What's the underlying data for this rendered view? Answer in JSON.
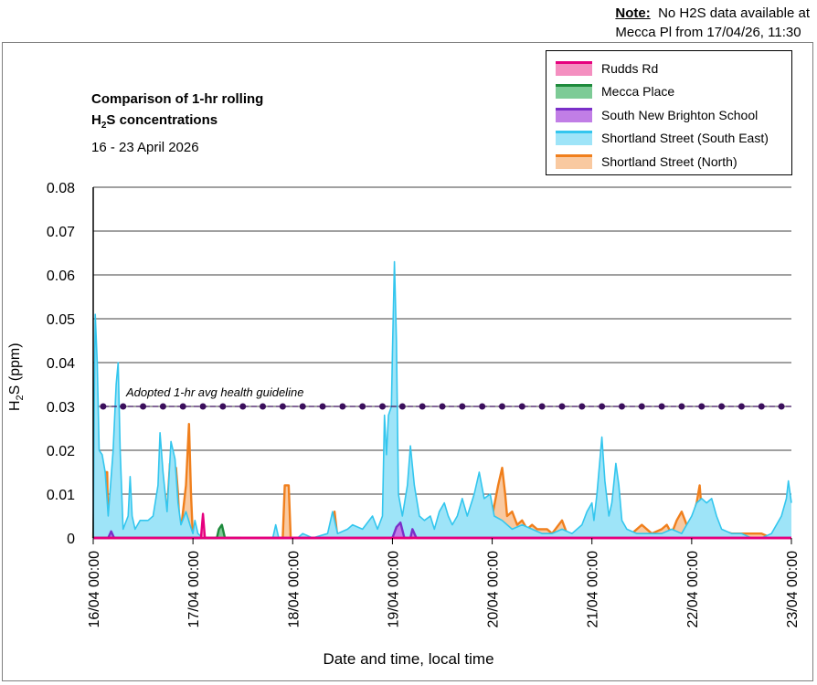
{
  "note": {
    "label": "Note:",
    "line1": "No H2S data available at",
    "line2": "Mecca Pl from 17/04/26, 11:30"
  },
  "chart_data": {
    "type": "area",
    "title": "Comparison of 1-hr rolling H2S concentrations",
    "title_line1": "Comparison of 1-hr rolling",
    "title_line2_main": "H",
    "title_line2_sub": "2",
    "title_line2_rest": "S concentrations",
    "subtitle": "16 - 23 April 2026",
    "ylabel_main": "H",
    "ylabel_sub": "2",
    "ylabel_rest": "S (ppm)",
    "xlabel": "Date and time, local time",
    "ylim": [
      0,
      0.08
    ],
    "yticks": [
      "0",
      "0.01",
      "0.02",
      "0.03",
      "0.04",
      "0.05",
      "0.06",
      "0.07",
      "0.08"
    ],
    "ytick_values": [
      0,
      0.01,
      0.02,
      0.03,
      0.04,
      0.05,
      0.06,
      0.07,
      0.08
    ],
    "xlim_days": [
      0,
      7
    ],
    "xticks": [
      "16/04 00:00",
      "17/04 00:00",
      "18/04 00:00",
      "19/04 00:00",
      "20/04 00:00",
      "21/04 00:00",
      "22/04 00:00",
      "23/04 00:00"
    ],
    "grid": true,
    "legend_position": "top-right",
    "guideline": {
      "label": "Adopted 1-hr avg health guideline",
      "value": 0.03,
      "color": "#3b0f5c"
    },
    "series": [
      {
        "name": "Rudds Rd",
        "line_color": "#e6007e",
        "fill_color": "#f48fc0",
        "points": [
          [
            0,
            0
          ],
          [
            1.08,
            0
          ],
          [
            1.1,
            0.0055
          ],
          [
            1.12,
            0
          ],
          [
            7,
            0
          ]
        ]
      },
      {
        "name": "Mecca Place",
        "line_color": "#1e8a3c",
        "fill_color": "#7dcb96",
        "points": [
          [
            0,
            0
          ],
          [
            1.24,
            0
          ],
          [
            1.26,
            0.002
          ],
          [
            1.29,
            0.003
          ],
          [
            1.32,
            0
          ],
          [
            1.48,
            0
          ]
        ]
      },
      {
        "name": "South New Brighton School",
        "line_color": "#7a2fc8",
        "fill_color": "#c17ee6",
        "points": [
          [
            0,
            0
          ],
          [
            0.15,
            0
          ],
          [
            0.18,
            0.0015
          ],
          [
            0.21,
            0
          ],
          [
            3,
            0
          ],
          [
            3.04,
            0.0025
          ],
          [
            3.08,
            0.0035
          ],
          [
            3.12,
            0
          ],
          [
            3.18,
            0
          ],
          [
            3.2,
            0.002
          ],
          [
            3.24,
            0
          ],
          [
            7,
            0
          ]
        ]
      },
      {
        "name": "Shortland Street (South East)",
        "line_color": "#33c6ee",
        "fill_color": "#9ee4f8",
        "points": [
          [
            0,
            0
          ],
          [
            0.01,
            0.03
          ],
          [
            0.02,
            0.051
          ],
          [
            0.04,
            0.04
          ],
          [
            0.06,
            0.02
          ],
          [
            0.09,
            0.019
          ],
          [
            0.12,
            0.015
          ],
          [
            0.15,
            0.005
          ],
          [
            0.2,
            0.02
          ],
          [
            0.23,
            0.035
          ],
          [
            0.25,
            0.04
          ],
          [
            0.27,
            0.02
          ],
          [
            0.3,
            0.002
          ],
          [
            0.35,
            0.005
          ],
          [
            0.37,
            0.014
          ],
          [
            0.39,
            0.005
          ],
          [
            0.42,
            0.002
          ],
          [
            0.47,
            0.004
          ],
          [
            0.55,
            0.004
          ],
          [
            0.6,
            0.005
          ],
          [
            0.65,
            0.012
          ],
          [
            0.67,
            0.024
          ],
          [
            0.7,
            0.015
          ],
          [
            0.74,
            0.006
          ],
          [
            0.78,
            0.022
          ],
          [
            0.82,
            0.018
          ],
          [
            0.85,
            0.008
          ],
          [
            0.88,
            0.003
          ],
          [
            0.93,
            0.006
          ],
          [
            0.97,
            0.003
          ],
          [
            1.0,
            0.001
          ],
          [
            1.02,
            0.004
          ],
          [
            1.05,
            0.001
          ],
          [
            1.1,
            0
          ],
          [
            1.8,
            0
          ],
          [
            1.83,
            0.003
          ],
          [
            1.86,
            0
          ],
          [
            2.05,
            0
          ],
          [
            2.1,
            0.001
          ],
          [
            2.2,
            0
          ],
          [
            2.35,
            0.001
          ],
          [
            2.4,
            0.006
          ],
          [
            2.45,
            0.001
          ],
          [
            2.55,
            0.002
          ],
          [
            2.6,
            0.003
          ],
          [
            2.7,
            0.002
          ],
          [
            2.8,
            0.005
          ],
          [
            2.85,
            0.002
          ],
          [
            2.9,
            0.005
          ],
          [
            2.92,
            0.028
          ],
          [
            2.94,
            0.019
          ],
          [
            2.96,
            0.028
          ],
          [
            2.99,
            0.03
          ],
          [
            3.0,
            0.042
          ],
          [
            3.02,
            0.063
          ],
          [
            3.04,
            0.045
          ],
          [
            3.06,
            0.01
          ],
          [
            3.1,
            0.005
          ],
          [
            3.15,
            0.012
          ],
          [
            3.18,
            0.021
          ],
          [
            3.22,
            0.012
          ],
          [
            3.27,
            0.005
          ],
          [
            3.32,
            0.004
          ],
          [
            3.38,
            0.005
          ],
          [
            3.42,
            0.002
          ],
          [
            3.47,
            0.006
          ],
          [
            3.52,
            0.008
          ],
          [
            3.56,
            0.005
          ],
          [
            3.6,
            0.003
          ],
          [
            3.65,
            0.005
          ],
          [
            3.7,
            0.009
          ],
          [
            3.75,
            0.005
          ],
          [
            3.82,
            0.01
          ],
          [
            3.87,
            0.015
          ],
          [
            3.92,
            0.009
          ],
          [
            3.98,
            0.01
          ],
          [
            4.02,
            0.005
          ],
          [
            4.1,
            0.004
          ],
          [
            4.2,
            0.002
          ],
          [
            4.3,
            0.003
          ],
          [
            4.4,
            0.002
          ],
          [
            4.5,
            0.001
          ],
          [
            4.6,
            0.001
          ],
          [
            4.7,
            0.002
          ],
          [
            4.8,
            0.001
          ],
          [
            4.9,
            0.003
          ],
          [
            4.95,
            0.006
          ],
          [
            5.0,
            0.008
          ],
          [
            5.02,
            0.004
          ],
          [
            5.05,
            0.01
          ],
          [
            5.1,
            0.023
          ],
          [
            5.13,
            0.013
          ],
          [
            5.17,
            0.005
          ],
          [
            5.2,
            0.008
          ],
          [
            5.24,
            0.017
          ],
          [
            5.27,
            0.012
          ],
          [
            5.3,
            0.004
          ],
          [
            5.35,
            0.002
          ],
          [
            5.45,
            0.001
          ],
          [
            5.6,
            0.001
          ],
          [
            5.7,
            0.001
          ],
          [
            5.8,
            0.002
          ],
          [
            5.9,
            0.001
          ],
          [
            6.0,
            0.005
          ],
          [
            6.05,
            0.008
          ],
          [
            6.1,
            0.009
          ],
          [
            6.15,
            0.008
          ],
          [
            6.2,
            0.009
          ],
          [
            6.25,
            0.005
          ],
          [
            6.3,
            0.002
          ],
          [
            6.4,
            0.001
          ],
          [
            6.5,
            0.001
          ],
          [
            6.6,
            0
          ],
          [
            6.7,
            0
          ],
          [
            6.8,
            0.001
          ],
          [
            6.9,
            0.005
          ],
          [
            6.95,
            0.009
          ],
          [
            6.97,
            0.013
          ],
          [
            7.0,
            0.008
          ]
        ]
      },
      {
        "name": "Shortland Street (North)",
        "line_color": "#f07f1c",
        "fill_color": "#f9c9a0",
        "points": [
          [
            0,
            0
          ],
          [
            0.02,
            0.019
          ],
          [
            0.06,
            0.019
          ],
          [
            0.08,
            0.012
          ],
          [
            0.1,
            0.015
          ],
          [
            0.14,
            0.015
          ],
          [
            0.15,
            0
          ],
          [
            0.7,
            0
          ],
          [
            0.72,
            0.01
          ],
          [
            0.74,
            0
          ],
          [
            0.75,
            0.01
          ],
          [
            0.77,
            0.017
          ],
          [
            0.79,
            0.01
          ],
          [
            0.8,
            0.003
          ],
          [
            0.81,
            0.014
          ],
          [
            0.83,
            0.016
          ],
          [
            0.85,
            0.01
          ],
          [
            0.87,
            0
          ],
          [
            0.93,
            0.012
          ],
          [
            0.96,
            0.026
          ],
          [
            0.98,
            0.01
          ],
          [
            1.0,
            0
          ],
          [
            1.9,
            0
          ],
          [
            1.92,
            0.012
          ],
          [
            1.96,
            0.012
          ],
          [
            1.98,
            0
          ],
          [
            2.4,
            0
          ],
          [
            2.42,
            0.006
          ],
          [
            2.45,
            0
          ],
          [
            2.92,
            0
          ],
          [
            2.94,
            0.013
          ],
          [
            2.96,
            0.006
          ],
          [
            2.98,
            0
          ],
          [
            3.2,
            0
          ],
          [
            3.25,
            0.002
          ],
          [
            3.3,
            0.001
          ],
          [
            3.4,
            0
          ],
          [
            3.5,
            0.003
          ],
          [
            3.55,
            0.001
          ],
          [
            3.6,
            0.003
          ],
          [
            3.65,
            0
          ],
          [
            3.75,
            0.002
          ],
          [
            3.8,
            0.001
          ],
          [
            3.9,
            0.002
          ],
          [
            3.95,
            0.001
          ],
          [
            4.0,
            0.005
          ],
          [
            4.06,
            0.012
          ],
          [
            4.1,
            0.016
          ],
          [
            4.13,
            0.01
          ],
          [
            4.15,
            0.005
          ],
          [
            4.2,
            0.006
          ],
          [
            4.25,
            0.003
          ],
          [
            4.3,
            0.004
          ],
          [
            4.35,
            0.002
          ],
          [
            4.4,
            0.003
          ],
          [
            4.45,
            0.002
          ],
          [
            4.55,
            0.002
          ],
          [
            4.6,
            0.001
          ],
          [
            4.7,
            0.004
          ],
          [
            4.75,
            0.001
          ],
          [
            4.9,
            0.001
          ],
          [
            4.95,
            0.003
          ],
          [
            5.0,
            0.005
          ],
          [
            5.05,
            0.002
          ],
          [
            5.1,
            0.003
          ],
          [
            5.15,
            0.001
          ],
          [
            5.25,
            0.002
          ],
          [
            5.4,
            0.001
          ],
          [
            5.5,
            0.003
          ],
          [
            5.6,
            0.001
          ],
          [
            5.7,
            0.002
          ],
          [
            5.75,
            0.003
          ],
          [
            5.8,
            0.001
          ],
          [
            5.85,
            0.004
          ],
          [
            5.9,
            0.006
          ],
          [
            5.95,
            0.003
          ],
          [
            6.0,
            0.004
          ],
          [
            6.05,
            0.008
          ],
          [
            6.08,
            0.012
          ],
          [
            6.1,
            0.006
          ],
          [
            6.15,
            0.007
          ],
          [
            6.2,
            0.005
          ],
          [
            6.25,
            0.002
          ],
          [
            6.4,
            0.001
          ],
          [
            6.5,
            0.001
          ],
          [
            6.6,
            0.001
          ],
          [
            6.7,
            0.001
          ],
          [
            6.8,
            0
          ],
          [
            7,
            0
          ]
        ]
      }
    ]
  }
}
